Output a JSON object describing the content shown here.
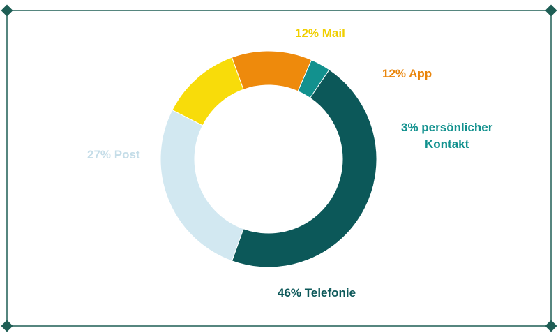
{
  "chart_data": {
    "type": "pie",
    "donut": true,
    "slices": [
      {
        "label": "Mail",
        "display": "12% Mail",
        "value": 12,
        "color": "#F8DC0A"
      },
      {
        "label": "App",
        "display": "12% App",
        "value": 12,
        "color": "#EE8A0C"
      },
      {
        "label": "persönlicher Kontakt",
        "display_line1": "3% persönlicher",
        "display_line2": "Kontakt",
        "value": 3,
        "color": "#12918E"
      },
      {
        "label": "Telefonie",
        "display": "46% Telefonie",
        "value": 46,
        "color": "#0C5859"
      },
      {
        "label": "Post",
        "display": "27% Post",
        "value": 27,
        "color": "#D2E8F1"
      }
    ]
  },
  "frame": {
    "border_color": "#1E5E55"
  }
}
